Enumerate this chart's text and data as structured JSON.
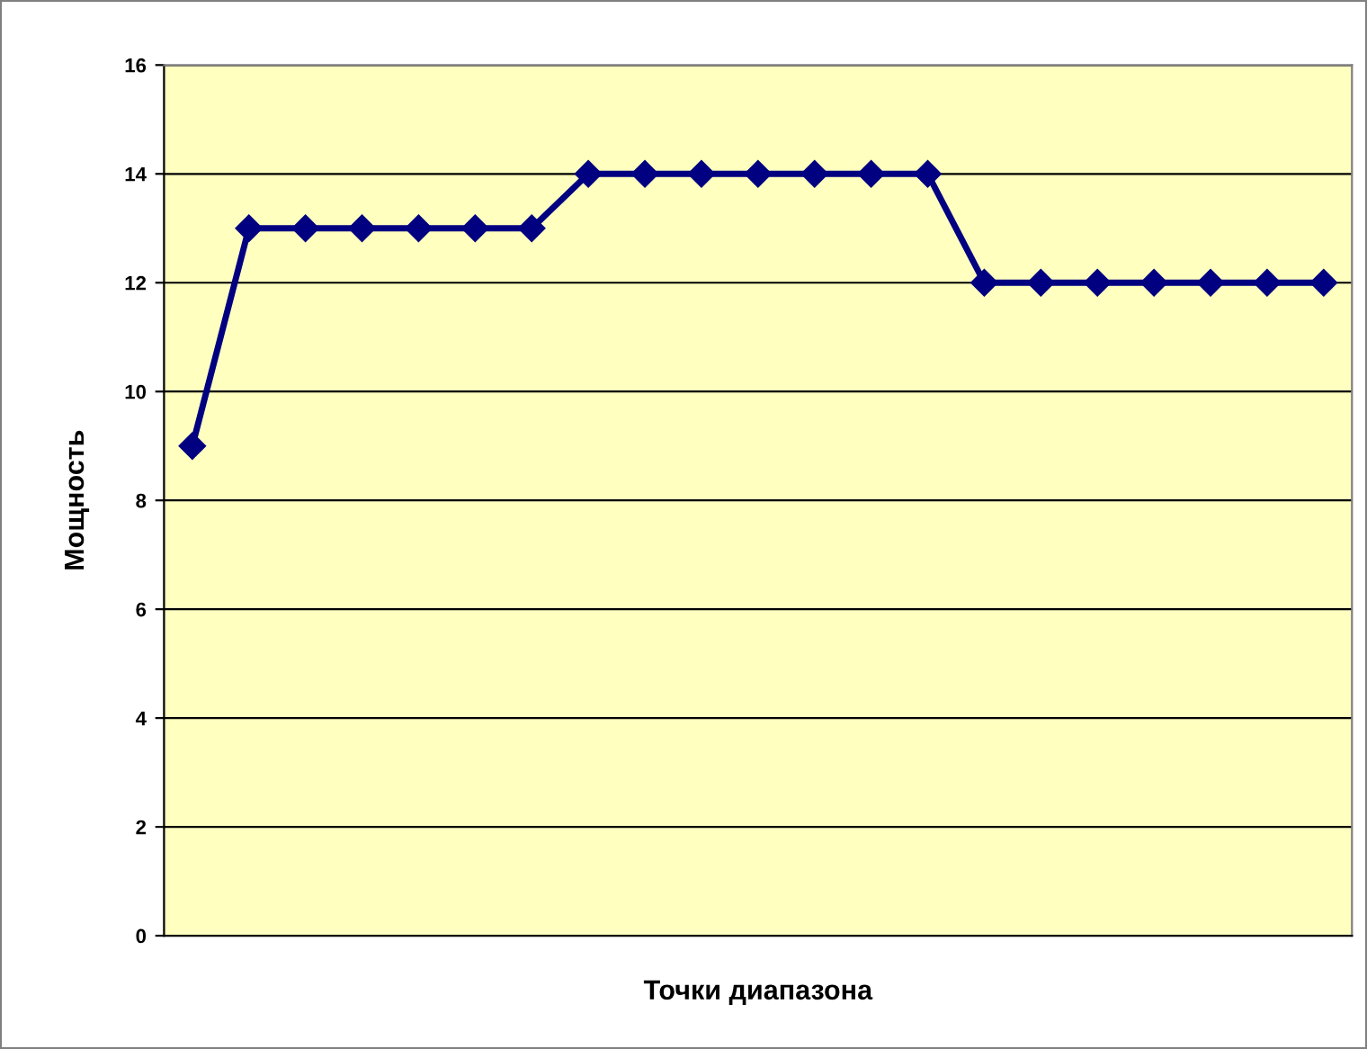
{
  "chart_data": {
    "type": "line",
    "xlabel": "Точки диапазона",
    "ylabel": "Мощность",
    "categories": [
      null,
      null,
      null,
      null,
      null,
      null,
      null,
      null,
      null,
      null,
      null,
      null,
      null,
      null,
      null,
      null,
      null,
      null,
      null,
      null,
      null
    ],
    "series": [
      {
        "color": "#000080",
        "values": [
          9,
          13,
          13,
          13,
          13,
          13,
          13,
          14,
          14,
          14,
          14,
          14,
          14,
          14,
          12,
          12,
          12,
          12,
          12,
          12,
          12
        ]
      }
    ],
    "ylim": [
      0,
      16
    ],
    "yticks": [
      0,
      2,
      4,
      6,
      8,
      10,
      12,
      14,
      16
    ],
    "grid": "y",
    "marker": "diamond",
    "line_style": "solid",
    "legend": false
  }
}
